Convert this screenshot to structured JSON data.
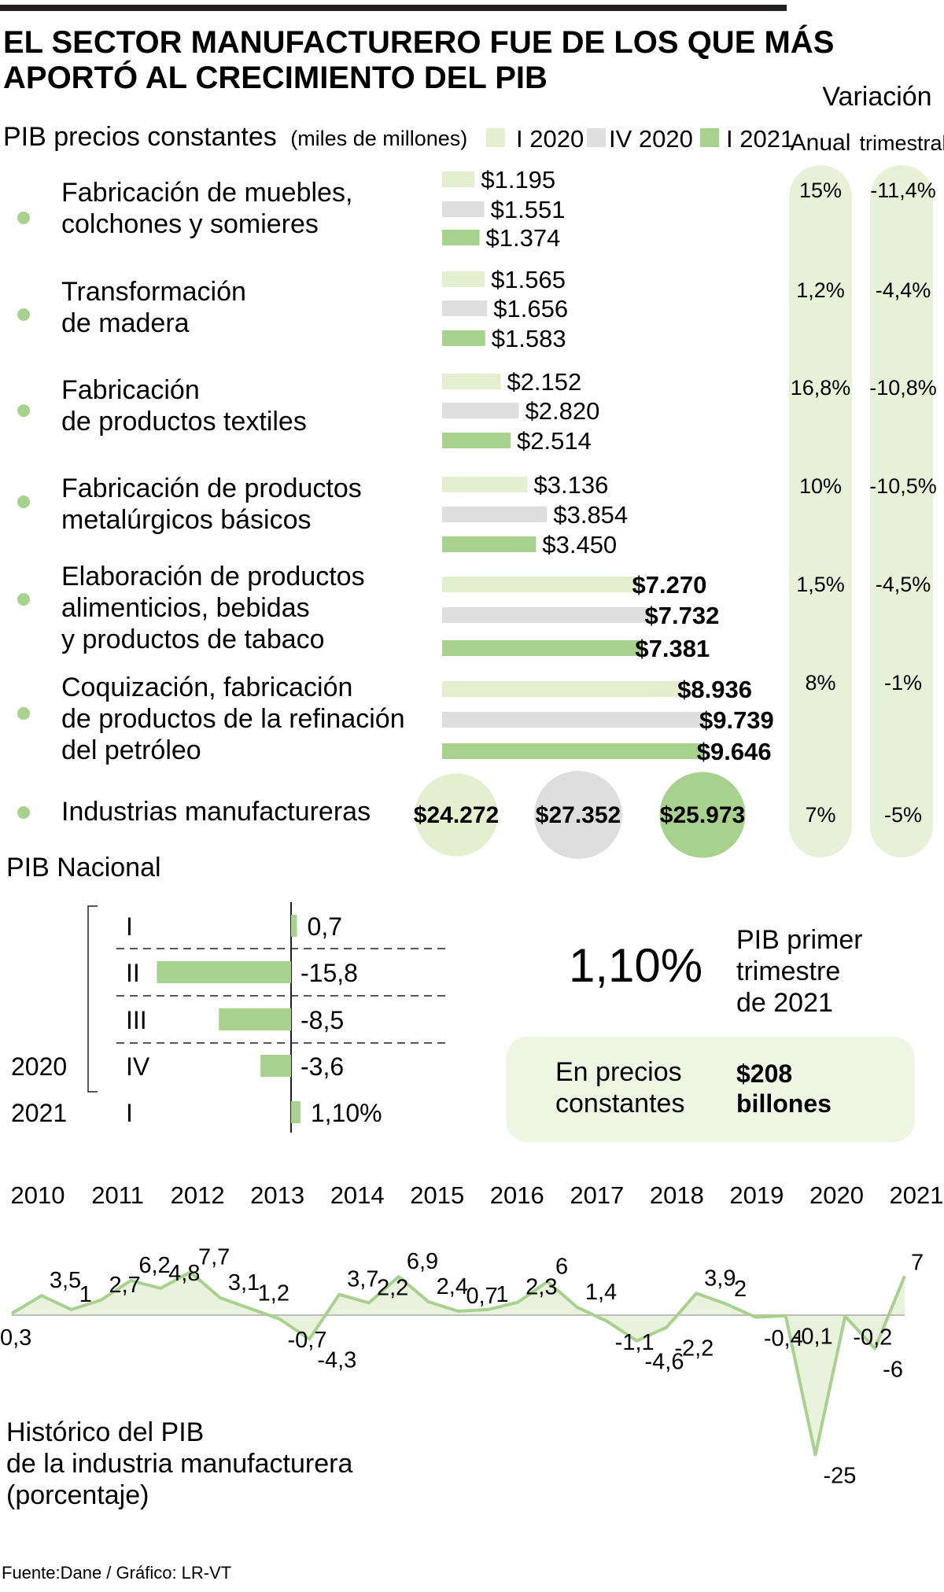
{
  "title_lines": [
    "EL SECTOR MANUFACTURERO FUE DE LOS QUE MÁS",
    "APORTÓ AL CRECIMIENTO DEL PIB"
  ],
  "colors": {
    "i2020": "#e3efcf",
    "iv2020": "#dededf",
    "i2021": "#a9d18e",
    "dot": "#a9d18e",
    "col": "#e6f1d8",
    "box": "#edf5e3",
    "line": "#a9d18e",
    "area": "#e9f2dc",
    "ink": "#231f20"
  },
  "chart_data": [
    {
      "type": "bar",
      "title": "PIB precios constantes",
      "subtitle": "(miles de millones)",
      "variation_header": "Variación",
      "col_headers": [
        "Anual",
        "trimestral"
      ],
      "series_names": [
        "I 2020",
        "IV 2020",
        "I 2021"
      ],
      "categories": [
        {
          "lines": [
            "Fabricación de muebles,",
            "colchones y somieres"
          ],
          "values": [
            1195,
            1551,
            1374
          ],
          "labels": [
            "$1.195",
            "$1.551",
            "$1.374"
          ],
          "anual": "15%",
          "trimestral": "-11,4%"
        },
        {
          "lines": [
            "Transformación",
            "de madera"
          ],
          "values": [
            1565,
            1656,
            1583
          ],
          "labels": [
            "$1.565",
            "$1.656",
            "$1.583"
          ],
          "anual": "1,2%",
          "trimestral": "-4,4%"
        },
        {
          "lines": [
            "Fabricación",
            "de productos textiles"
          ],
          "values": [
            2152,
            2820,
            2514
          ],
          "labels": [
            "$2.152",
            "$2.820",
            "$2.514"
          ],
          "anual": "16,8%",
          "trimestral": "-10,8%"
        },
        {
          "lines": [
            "Fabricación de productos",
            "metalúrgicos básicos"
          ],
          "values": [
            3136,
            3854,
            3450
          ],
          "labels": [
            "$3.136",
            "$3.854",
            "$3.450"
          ],
          "anual": "10%",
          "trimestral": "-10,5%"
        },
        {
          "lines": [
            "Elaboración de productos",
            "alimenticios, bebidas",
            "y productos de tabaco"
          ],
          "values": [
            7270,
            7732,
            7381
          ],
          "labels": [
            "$7.270",
            "$7.732",
            "$7.381"
          ],
          "anual": "1,5%",
          "trimestral": "-4,5%"
        },
        {
          "lines": [
            "Coquización, fabricación",
            "de productos de la refinación",
            "del petróleo"
          ],
          "values": [
            8936,
            9739,
            9646
          ],
          "labels": [
            "$8.936",
            "$9.739",
            "$9.646"
          ],
          "anual": "8%",
          "trimestral": "-1%"
        }
      ],
      "total": {
        "label": "Industrias manufactureras",
        "values": [
          24272,
          27352,
          25973
        ],
        "labels": [
          "$24.272",
          "$27.352",
          "$25.973"
        ],
        "anual": "7%",
        "trimestral": "-5%"
      }
    },
    {
      "type": "bar",
      "title": "PIB Nacional",
      "orientation": "horizontal",
      "year_labels": [
        "2020",
        "2021"
      ],
      "rows": [
        {
          "quarter": "I",
          "value": 0.7,
          "label": "0,7"
        },
        {
          "quarter": "II",
          "value": -15.8,
          "label": "-15,8"
        },
        {
          "quarter": "III",
          "value": -8.5,
          "label": "-8,5"
        },
        {
          "quarter": "IV",
          "value": -3.6,
          "label": "-3,6"
        },
        {
          "quarter": "I",
          "value": 1.1,
          "label": "1,10%"
        }
      ]
    },
    {
      "type": "area",
      "title_lines": [
        "Histórico del PIB",
        "de la industria manufacturera",
        "(porcentaje)"
      ],
      "years": [
        "2010",
        "2011",
        "2012",
        "2013",
        "2014",
        "2015",
        "2016",
        "2017",
        "2018",
        "2019",
        "2020",
        "2021"
      ],
      "values": [
        0.3,
        3.5,
        1,
        2.7,
        6.2,
        4.8,
        7.7,
        3.1,
        1.2,
        -0.7,
        -4.3,
        3.7,
        2.2,
        6.9,
        2.4,
        0.7,
        1,
        2.3,
        6,
        1.4,
        -1.1,
        -4.6,
        -2.2,
        3.9,
        2,
        -0.4,
        -0.1,
        -25,
        -0.2,
        -6,
        7
      ],
      "labels": [
        "0,3",
        "3,5",
        "1",
        "2,7",
        "6,2",
        "4,8",
        "7,7",
        "3,1",
        "1,2",
        "-0,7",
        "-4,3",
        "3,7",
        "2,2",
        "6,9",
        "2,4",
        "0,7",
        "1",
        "2,3",
        "6",
        "1,4",
        "-1,1",
        "-4,6",
        "-2,2",
        "3,9",
        "2",
        "-0,4",
        "-0,1",
        "-25",
        "-0,2",
        "-6",
        "7"
      ]
    }
  ],
  "highlight": {
    "value": "1,10%",
    "desc_lines": [
      "PIB primer",
      "trimestre",
      "de 2021"
    ],
    "box_label_lines": [
      "En precios",
      "constantes"
    ],
    "box_value_lines": [
      "$208",
      "billones"
    ]
  },
  "source": "Fuente:Dane / Gráfico: LR-VT"
}
